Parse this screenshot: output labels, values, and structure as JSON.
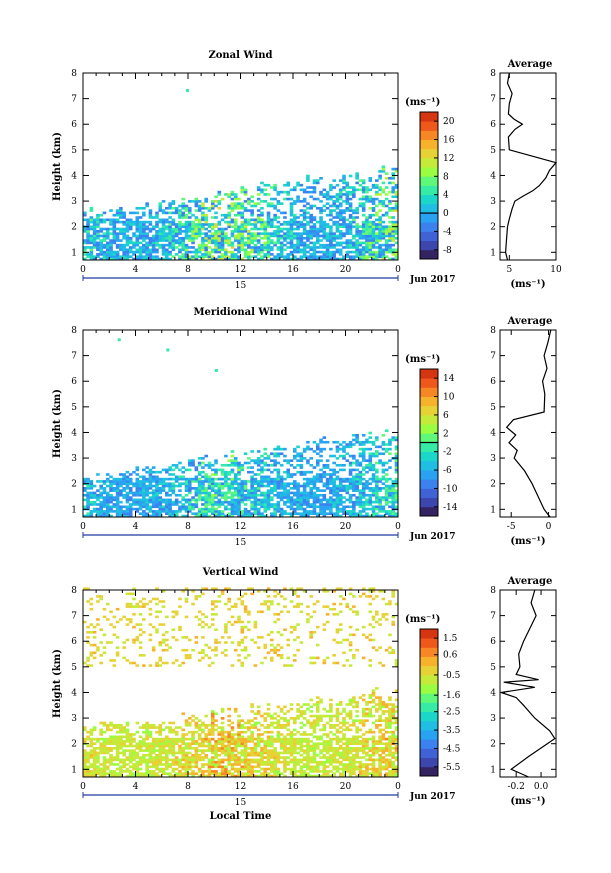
{
  "chart_data": [
    {
      "type": "heatmap",
      "title": "Zonal Wind",
      "ylabel": "Height (km)",
      "xlabel": "",
      "x_ticks": [
        "0",
        "4",
        "8",
        "12",
        "16",
        "20",
        "0"
      ],
      "xlim": [
        0,
        24
      ],
      "y_ticks": [
        "1",
        "2",
        "3",
        "4",
        "5",
        "6",
        "7",
        "8"
      ],
      "ylim": [
        0.7,
        8
      ],
      "date_day": "15",
      "date_month": "Jun 2017",
      "colorbar": {
        "unit": "(ms⁻¹)",
        "ticks": [
          "20",
          "16",
          "12",
          "8",
          "4",
          "0",
          "-4",
          "-8"
        ],
        "min": -10,
        "max": 22,
        "zero_line": 0
      },
      "field": {
        "lowest_height": 0.7,
        "top_height_start": 2.5,
        "top_height_end": 4.2,
        "min_value": -8,
        "max_value": 12,
        "sparse_value": 4,
        "upper_dots": [
          {
            "x": 8,
            "y": 7.3
          }
        ]
      },
      "average": {
        "title": "Average",
        "xlabel": "(ms⁻¹)",
        "x_ticks": [
          "5",
          "10"
        ],
        "xlim": [
          4,
          10
        ],
        "heights": [
          0.7,
          1.0,
          1.5,
          2.0,
          2.3,
          2.7,
          3.0,
          3.2,
          3.4,
          3.6,
          3.9,
          4.2,
          4.5,
          5.0,
          5.5,
          5.8,
          6.0,
          6.2,
          6.4,
          6.8,
          7.2,
          7.6,
          8.0
        ],
        "values": [
          4.8,
          4.6,
          4.7,
          4.8,
          5.0,
          5.3,
          5.6,
          6.5,
          7.5,
          8.2,
          8.9,
          9.3,
          10.0,
          5.0,
          4.9,
          5.6,
          6.4,
          5.5,
          4.9,
          5.0,
          5.3,
          4.8,
          5.0
        ]
      }
    },
    {
      "type": "heatmap",
      "title": "Meridional Wind",
      "ylabel": "Height (km)",
      "xlabel": "",
      "x_ticks": [
        "0",
        "4",
        "8",
        "12",
        "16",
        "20",
        "0"
      ],
      "xlim": [
        0,
        24
      ],
      "y_ticks": [
        "1",
        "2",
        "3",
        "4",
        "5",
        "6",
        "7",
        "8"
      ],
      "ylim": [
        0.7,
        8
      ],
      "date_day": "15",
      "date_month": "Jun 2017",
      "colorbar": {
        "unit": "(ms⁻¹)",
        "ticks": [
          "14",
          "10",
          "6",
          "2",
          "-2",
          "-6",
          "-10",
          "-14"
        ],
        "min": -16,
        "max": 16,
        "zero_line": 0
      },
      "field": {
        "lowest_height": 0.7,
        "top_height_start": 2.2,
        "top_height_end": 4.0,
        "min_value": -12,
        "max_value": 2,
        "sparse_value": -2,
        "upper_dots": [
          {
            "x": 2.8,
            "y": 7.6
          },
          {
            "x": 6.5,
            "y": 7.2
          },
          {
            "x": 10.2,
            "y": 6.4
          }
        ]
      },
      "average": {
        "title": "Average",
        "xlabel": "(ms⁻¹)",
        "x_ticks": [
          "-5",
          "0"
        ],
        "xlim": [
          -6.5,
          1
        ],
        "heights": [
          0.7,
          1.0,
          1.5,
          2.0,
          2.5,
          3.0,
          3.3,
          3.6,
          3.9,
          4.2,
          4.5,
          4.8,
          5.5,
          6.0,
          6.5,
          7.0,
          7.5,
          8.0
        ],
        "values": [
          0.2,
          -0.6,
          -1.4,
          -2.2,
          -3.2,
          -4.6,
          -4.2,
          -5.3,
          -4.4,
          -5.6,
          -4.7,
          -0.6,
          -0.5,
          -0.8,
          -0.2,
          -0.6,
          -0.1,
          0.3
        ]
      }
    },
    {
      "type": "heatmap",
      "title": "Vertical Wind",
      "ylabel": "Height (km)",
      "xlabel": "Local Time",
      "x_ticks": [
        "0",
        "4",
        "8",
        "12",
        "16",
        "20",
        "0"
      ],
      "xlim": [
        0,
        24
      ],
      "y_ticks": [
        "1",
        "2",
        "3",
        "4",
        "5",
        "6",
        "7",
        "8"
      ],
      "ylim": [
        0.7,
        8
      ],
      "date_day": "15",
      "date_month": "Jun 2017",
      "colorbar": {
        "unit": "(ms⁻¹)",
        "ticks": [
          "1.5",
          "0.6",
          "-0.5",
          "-1.6",
          "-2.5",
          "-3.5",
          "-4.5",
          "-5.5"
        ],
        "min": -6,
        "max": 2,
        "zero_line": null
      },
      "field": {
        "lowest_height": 0.7,
        "top_height_start": 2.5,
        "top_height_end": 4.0,
        "min_value": -1.6,
        "max_value": 0.6,
        "sparse_value": -0.3,
        "upper_dots": []
      },
      "average": {
        "title": "Average",
        "xlabel": "(ms⁻¹)",
        "x_ticks": [
          "-0.2",
          "0.0"
        ],
        "xlim": [
          -0.33,
          0.12
        ],
        "heights": [
          0.7,
          1.0,
          1.5,
          2.0,
          2.2,
          2.5,
          3.0,
          3.5,
          3.8,
          4.0,
          4.2,
          4.4,
          4.5,
          4.7,
          5.0,
          5.5,
          6.0,
          6.5,
          7.0,
          7.5,
          8.0
        ],
        "values": [
          -0.1,
          -0.24,
          -0.1,
          0.05,
          0.11,
          0.07,
          -0.05,
          -0.14,
          -0.2,
          -0.32,
          -0.05,
          -0.3,
          -0.02,
          -0.2,
          -0.17,
          -0.18,
          -0.14,
          -0.09,
          -0.04,
          -0.08,
          -0.05
        ]
      }
    }
  ]
}
